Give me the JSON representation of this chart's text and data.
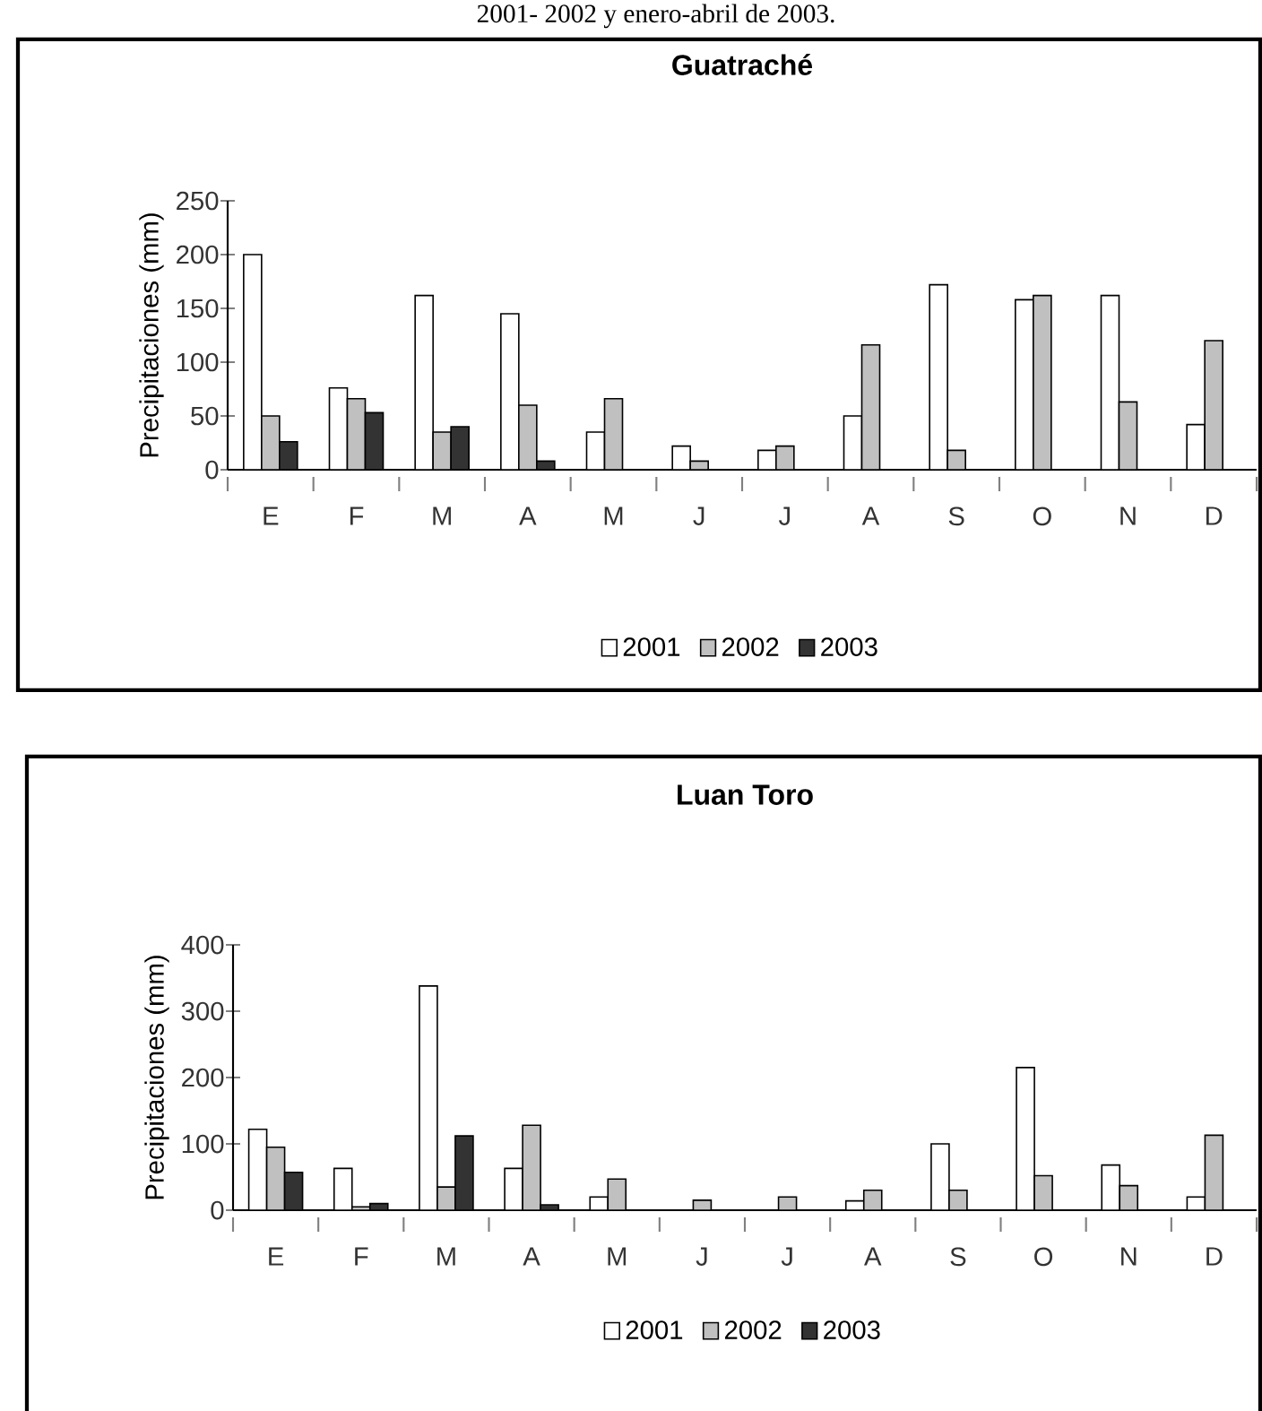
{
  "chart_data": [
    {
      "type": "bar",
      "title": "Guatraché",
      "ylabel": "Precipitaciones (mm)",
      "annotations": [
        "2001- 2002 y enero-abril de 2003."
      ],
      "categories": [
        "E",
        "F",
        "M",
        "A",
        "M",
        "J",
        "J",
        "A",
        "S",
        "O",
        "N",
        "D"
      ],
      "series": [
        {
          "name": "2001",
          "color": "#ffffff",
          "values": [
            200,
            76,
            162,
            145,
            35,
            22,
            18,
            50,
            172,
            158,
            162,
            42
          ]
        },
        {
          "name": "2002",
          "color": "#c0c0c0",
          "values": [
            50,
            66,
            35,
            60,
            66,
            8,
            22,
            116,
            18,
            162,
            63,
            120
          ]
        },
        {
          "name": "2003",
          "color": "#333333",
          "values": [
            26,
            53,
            40,
            8,
            null,
            null,
            null,
            null,
            null,
            null,
            null,
            null
          ]
        }
      ],
      "ylim": [
        0,
        250
      ],
      "yticks": [
        0,
        50,
        100,
        150,
        200,
        250
      ],
      "legend": "bottom"
    },
    {
      "type": "bar",
      "title": "Luan Toro",
      "ylabel": "Precipitaciones (mm)",
      "categories": [
        "E",
        "F",
        "M",
        "A",
        "M",
        "J",
        "J",
        "A",
        "S",
        "O",
        "N",
        "D"
      ],
      "series": [
        {
          "name": "2001",
          "color": "#ffffff",
          "values": [
            122,
            63,
            338,
            63,
            20,
            null,
            null,
            14,
            100,
            215,
            68,
            20
          ]
        },
        {
          "name": "2002",
          "color": "#c0c0c0",
          "values": [
            95,
            5,
            35,
            128,
            47,
            15,
            20,
            30,
            30,
            52,
            37,
            113
          ]
        },
        {
          "name": "2003",
          "color": "#333333",
          "values": [
            57,
            10,
            112,
            8,
            null,
            null,
            null,
            null,
            null,
            null,
            null,
            null
          ]
        }
      ],
      "ylim": [
        0,
        400
      ],
      "yticks": [
        0,
        100,
        200,
        300,
        400
      ],
      "legend": "bottom"
    }
  ]
}
